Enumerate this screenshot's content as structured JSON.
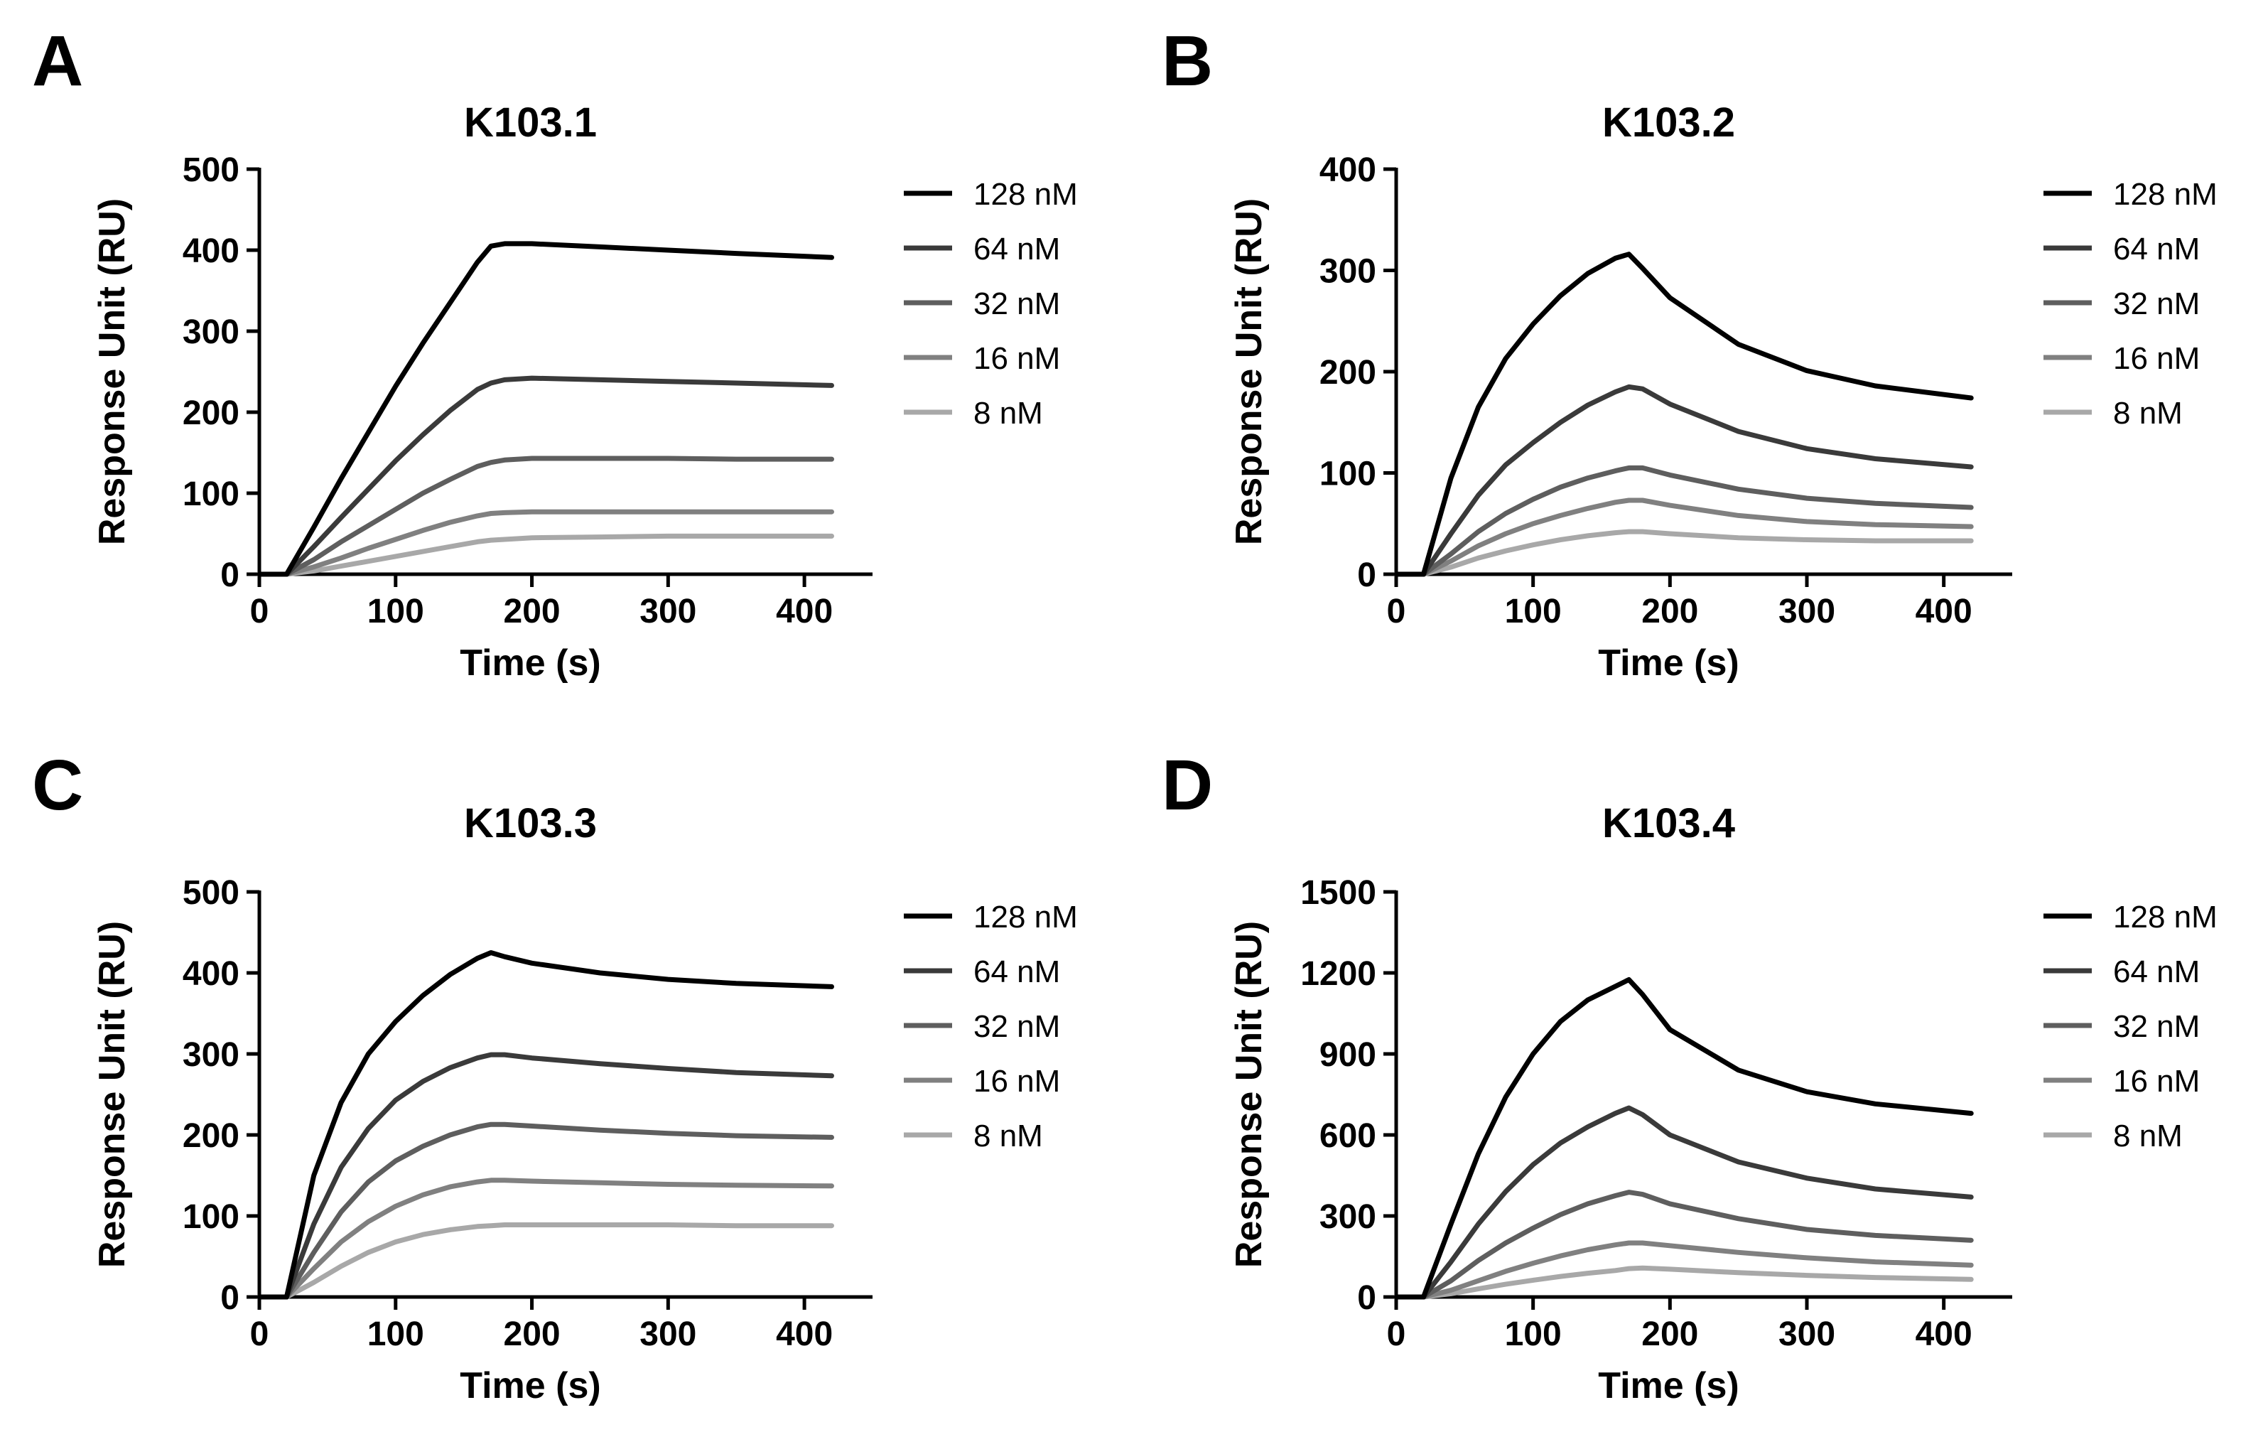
{
  "chart_data": [
    {
      "panel": "A",
      "type": "line",
      "title": "K103.1",
      "xlabel": "Time (s)",
      "ylabel": "Response Unit (RU)",
      "xlim": [
        0,
        450
      ],
      "ylim": [
        0,
        500
      ],
      "xticks": [
        0,
        100,
        200,
        300,
        400
      ],
      "yticks": [
        0,
        100,
        200,
        300,
        400,
        500
      ],
      "legend_position": "right",
      "x": [
        0,
        20,
        40,
        60,
        80,
        100,
        120,
        140,
        160,
        170,
        180,
        200,
        250,
        300,
        350,
        420
      ],
      "series": [
        {
          "name": "128 nM",
          "color": "#000000",
          "values": [
            0,
            0,
            58,
            118,
            175,
            232,
            285,
            335,
            385,
            405,
            408,
            408,
            404,
            400,
            396,
            391
          ]
        },
        {
          "name": "64 nM",
          "color": "#3a3a3a",
          "values": [
            0,
            0,
            34,
            70,
            105,
            140,
            172,
            202,
            228,
            236,
            240,
            242,
            240,
            238,
            236,
            233
          ]
        },
        {
          "name": "32 nM",
          "color": "#5e5e5e",
          "values": [
            0,
            0,
            18,
            40,
            60,
            80,
            100,
            117,
            133,
            138,
            141,
            143,
            143,
            143,
            142,
            142
          ]
        },
        {
          "name": "16 nM",
          "color": "#808080",
          "values": [
            0,
            0,
            9,
            20,
            32,
            43,
            54,
            64,
            72,
            75,
            76,
            77,
            77,
            77,
            77,
            77
          ]
        },
        {
          "name": "8 nM",
          "color": "#a8a8a8",
          "values": [
            0,
            0,
            4,
            10,
            16,
            22,
            28,
            34,
            40,
            42,
            43,
            45,
            46,
            47,
            47,
            47
          ]
        }
      ]
    },
    {
      "panel": "B",
      "type": "line",
      "title": "K103.2",
      "xlabel": "Time (s)",
      "ylabel": "Response Unit (RU)",
      "xlim": [
        0,
        450
      ],
      "ylim": [
        0,
        400
      ],
      "xticks": [
        0,
        100,
        200,
        300,
        400
      ],
      "yticks": [
        0,
        100,
        200,
        300,
        400
      ],
      "legend_position": "right",
      "x": [
        0,
        20,
        40,
        60,
        80,
        100,
        120,
        140,
        160,
        170,
        180,
        200,
        250,
        300,
        350,
        420
      ],
      "series": [
        {
          "name": "128 nM",
          "color": "#000000",
          "values": [
            0,
            0,
            95,
            165,
            213,
            247,
            275,
            297,
            312,
            316,
            302,
            273,
            227,
            201,
            186,
            174
          ]
        },
        {
          "name": "64 nM",
          "color": "#3a3a3a",
          "values": [
            0,
            0,
            40,
            78,
            108,
            130,
            150,
            167,
            180,
            185,
            183,
            168,
            141,
            124,
            114,
            106
          ]
        },
        {
          "name": "32 nM",
          "color": "#5e5e5e",
          "values": [
            0,
            0,
            20,
            42,
            60,
            74,
            86,
            95,
            102,
            105,
            105,
            98,
            84,
            75,
            70,
            66
          ]
        },
        {
          "name": "16 nM",
          "color": "#808080",
          "values": [
            0,
            0,
            13,
            28,
            40,
            50,
            58,
            65,
            71,
            73,
            73,
            68,
            58,
            52,
            49,
            47
          ]
        },
        {
          "name": "8 nM",
          "color": "#a8a8a8",
          "values": [
            0,
            0,
            7,
            16,
            23,
            29,
            34,
            38,
            41,
            42,
            42,
            40,
            36,
            34,
            33,
            33
          ]
        }
      ]
    },
    {
      "panel": "C",
      "type": "line",
      "title": "K103.3",
      "xlabel": "Time (s)",
      "ylabel": "Response Unit (RU)",
      "xlim": [
        0,
        450
      ],
      "ylim": [
        0,
        500
      ],
      "xticks": [
        0,
        100,
        200,
        300,
        400
      ],
      "yticks": [
        0,
        100,
        200,
        300,
        400,
        500
      ],
      "legend_position": "right",
      "x": [
        0,
        20,
        40,
        60,
        80,
        100,
        120,
        140,
        160,
        170,
        180,
        200,
        250,
        300,
        350,
        420
      ],
      "series": [
        {
          "name": "128 nM",
          "color": "#000000",
          "values": [
            0,
            0,
            150,
            240,
            300,
            340,
            372,
            398,
            418,
            425,
            420,
            412,
            400,
            392,
            387,
            383
          ]
        },
        {
          "name": "64 nM",
          "color": "#3a3a3a",
          "values": [
            0,
            0,
            90,
            160,
            208,
            243,
            266,
            283,
            295,
            299,
            299,
            295,
            288,
            282,
            277,
            273
          ]
        },
        {
          "name": "32 nM",
          "color": "#5e5e5e",
          "values": [
            0,
            0,
            55,
            105,
            142,
            168,
            186,
            200,
            210,
            213,
            213,
            211,
            206,
            202,
            199,
            197
          ]
        },
        {
          "name": "16 nM",
          "color": "#808080",
          "values": [
            0,
            0,
            35,
            68,
            93,
            112,
            126,
            136,
            142,
            144,
            144,
            143,
            141,
            139,
            138,
            137
          ]
        },
        {
          "name": "8 nM",
          "color": "#a8a8a8",
          "values": [
            0,
            0,
            18,
            38,
            55,
            68,
            77,
            83,
            87,
            88,
            89,
            89,
            89,
            89,
            88,
            88
          ]
        }
      ]
    },
    {
      "panel": "D",
      "type": "line",
      "title": "K103.4",
      "xlabel": "Time (s)",
      "ylabel": "Response Unit (RU)",
      "xlim": [
        0,
        450
      ],
      "ylim": [
        0,
        1500
      ],
      "xticks": [
        0,
        100,
        200,
        300,
        400
      ],
      "yticks": [
        0,
        300,
        600,
        900,
        1200,
        1500
      ],
      "legend_position": "right",
      "x": [
        0,
        20,
        40,
        60,
        80,
        100,
        120,
        140,
        160,
        170,
        180,
        200,
        250,
        300,
        350,
        420
      ],
      "series": [
        {
          "name": "128 nM",
          "color": "#000000",
          "values": [
            0,
            0,
            270,
            530,
            740,
            900,
            1020,
            1100,
            1150,
            1175,
            1120,
            990,
            840,
            760,
            715,
            680
          ]
        },
        {
          "name": "64 nM",
          "color": "#3a3a3a",
          "values": [
            0,
            0,
            130,
            270,
            390,
            490,
            570,
            630,
            680,
            700,
            675,
            600,
            500,
            440,
            400,
            370
          ]
        },
        {
          "name": "32 nM",
          "color": "#5e5e5e",
          "values": [
            0,
            0,
            60,
            135,
            200,
            255,
            305,
            345,
            375,
            388,
            380,
            345,
            290,
            250,
            228,
            210
          ]
        },
        {
          "name": "16 nM",
          "color": "#808080",
          "values": [
            0,
            0,
            25,
            60,
            95,
            125,
            152,
            175,
            193,
            200,
            200,
            190,
            165,
            145,
            130,
            118
          ]
        },
        {
          "name": "8 nM",
          "color": "#a8a8a8",
          "values": [
            0,
            0,
            12,
            30,
            47,
            62,
            76,
            88,
            98,
            105,
            107,
            103,
            90,
            80,
            72,
            65
          ]
        }
      ]
    }
  ],
  "panel_labels": [
    "A",
    "B",
    "C",
    "D"
  ]
}
